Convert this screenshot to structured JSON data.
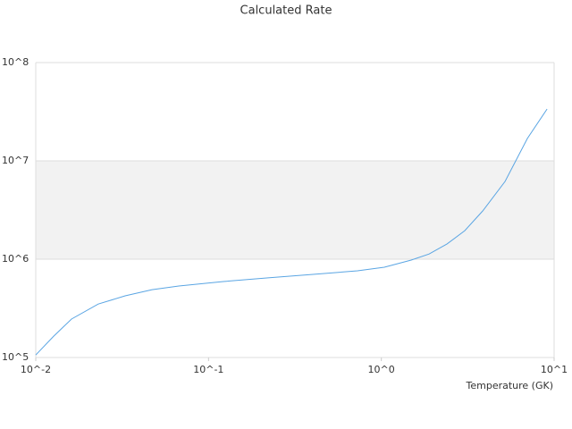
{
  "chart_data": {
    "type": "line",
    "title": "Calculated Rate",
    "x_label": "Temperature (GK)",
    "x": [
      0.01,
      0.0127,
      0.0161,
      0.023,
      0.0329,
      0.0471,
      0.0673,
      0.122,
      0.221,
      0.402,
      0.728,
      1.04,
      1.49,
      1.89,
      2.4,
      3.04,
      3.86,
      5.2,
      7.0,
      9.1
    ],
    "series": [
      {
        "color": "#5aa5e3",
        "values": [
          106000,
          165000,
          246000,
          350000,
          424000,
          490000,
          534000,
          593000,
          645000,
          700000,
          762000,
          828000,
          980000,
          1130000,
          1430000,
          1950000,
          3100000,
          6180000,
          16900000,
          33700000
        ]
      }
    ],
    "xlim": [
      0.01,
      10
    ],
    "ylim": [
      100000,
      100000000
    ],
    "xlog": true,
    "ylog": true,
    "xticks": [
      {
        "value": 0.01,
        "label": "10^-2"
      },
      {
        "value": 0.1,
        "label": "10^-1"
      },
      {
        "value": 1,
        "label": "10^0"
      },
      {
        "value": 10,
        "label": "10^1"
      }
    ],
    "yticks": [
      {
        "value": 100000,
        "label": "10^5"
      },
      {
        "value": 1000000,
        "label": "10^6"
      },
      {
        "value": 10000000,
        "label": "10^7"
      },
      {
        "value": 100000000,
        "label": "10^8"
      }
    ],
    "grid": true,
    "bands": true
  }
}
